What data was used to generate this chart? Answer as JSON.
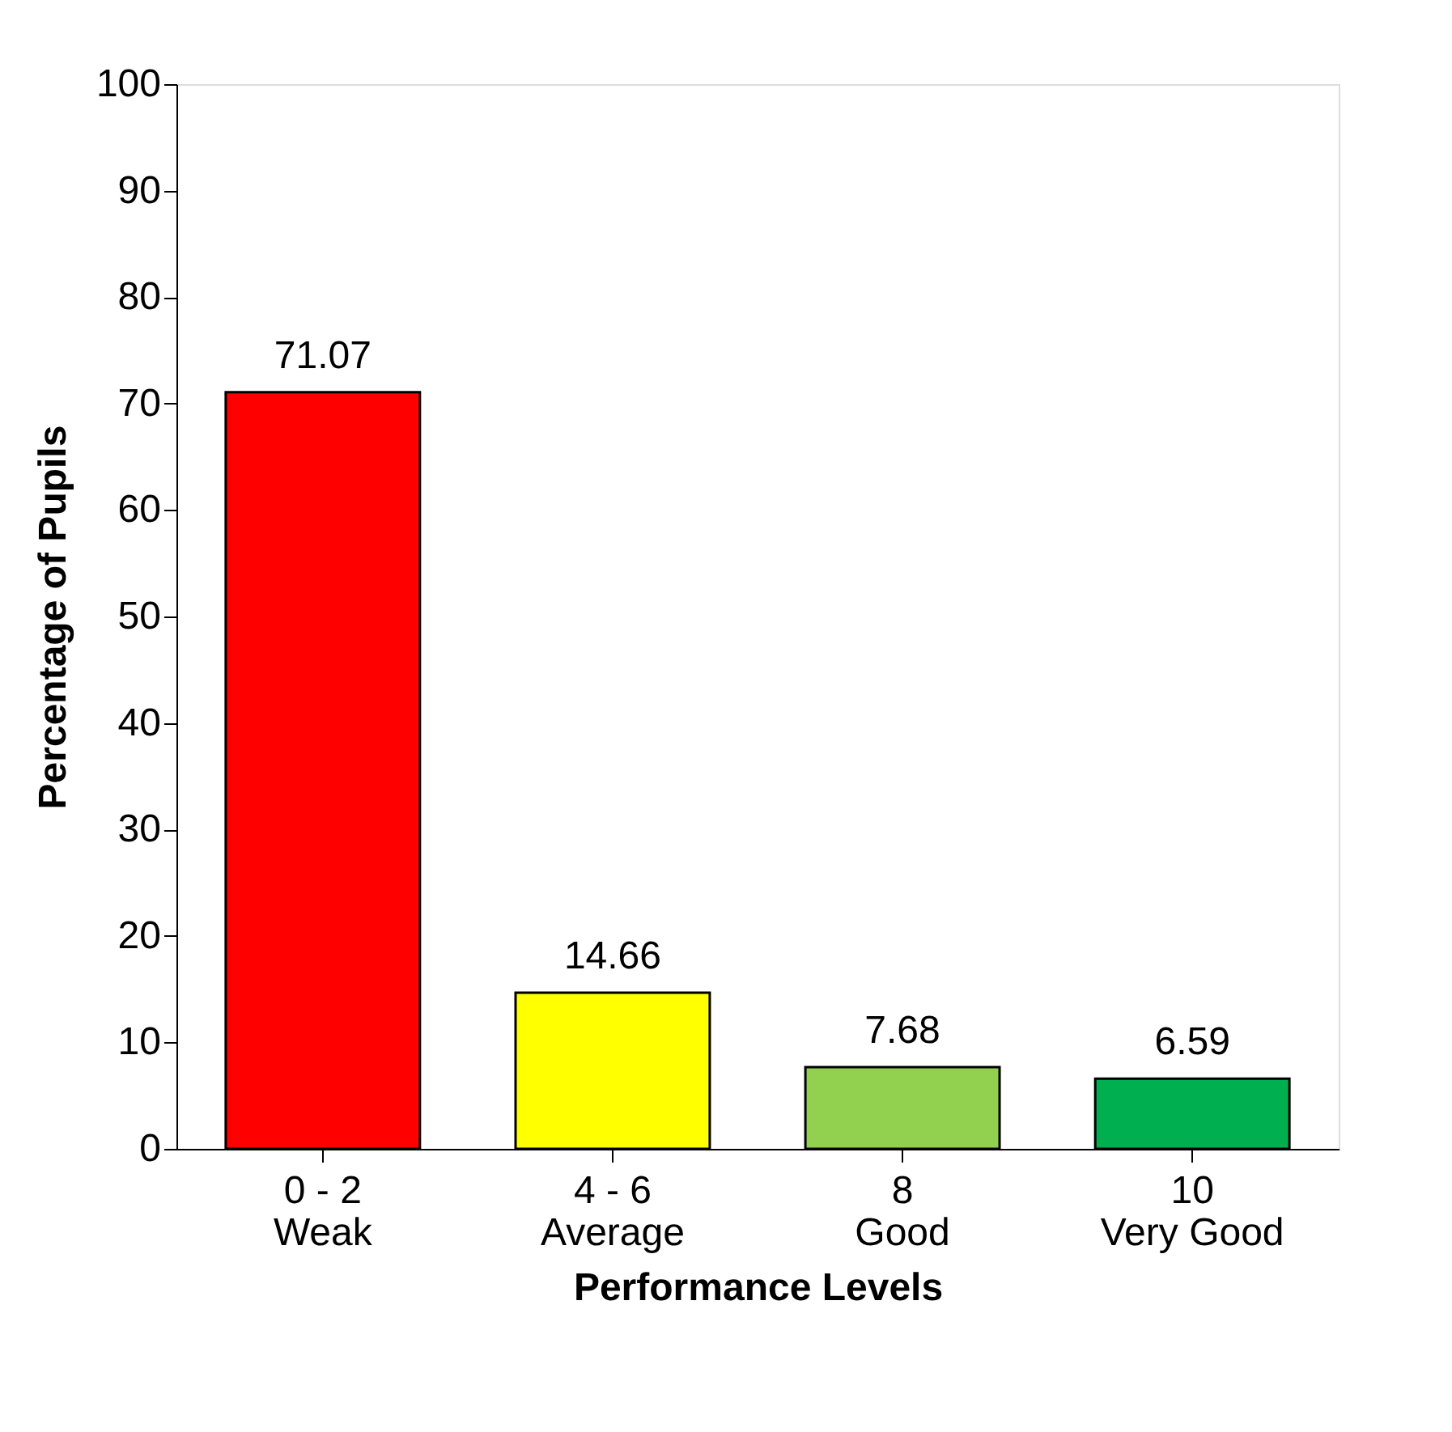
{
  "chart_data": {
    "type": "bar",
    "categories": [
      "0 - 2\nWeak",
      "4 - 6\nAverage",
      "8\nGood",
      "10\nVery Good"
    ],
    "values": [
      71.07,
      14.66,
      7.68,
      6.59
    ],
    "colors": [
      "#ff0000",
      "#ffff00",
      "#92d050",
      "#00b050"
    ],
    "xlabel": "Performance Levels",
    "ylabel": "Percentage of Pupils",
    "ylim": [
      0,
      100
    ],
    "yticks": [
      0,
      10,
      20,
      30,
      40,
      50,
      60,
      70,
      80,
      90,
      100
    ],
    "grid": false,
    "data_labels": true
  }
}
